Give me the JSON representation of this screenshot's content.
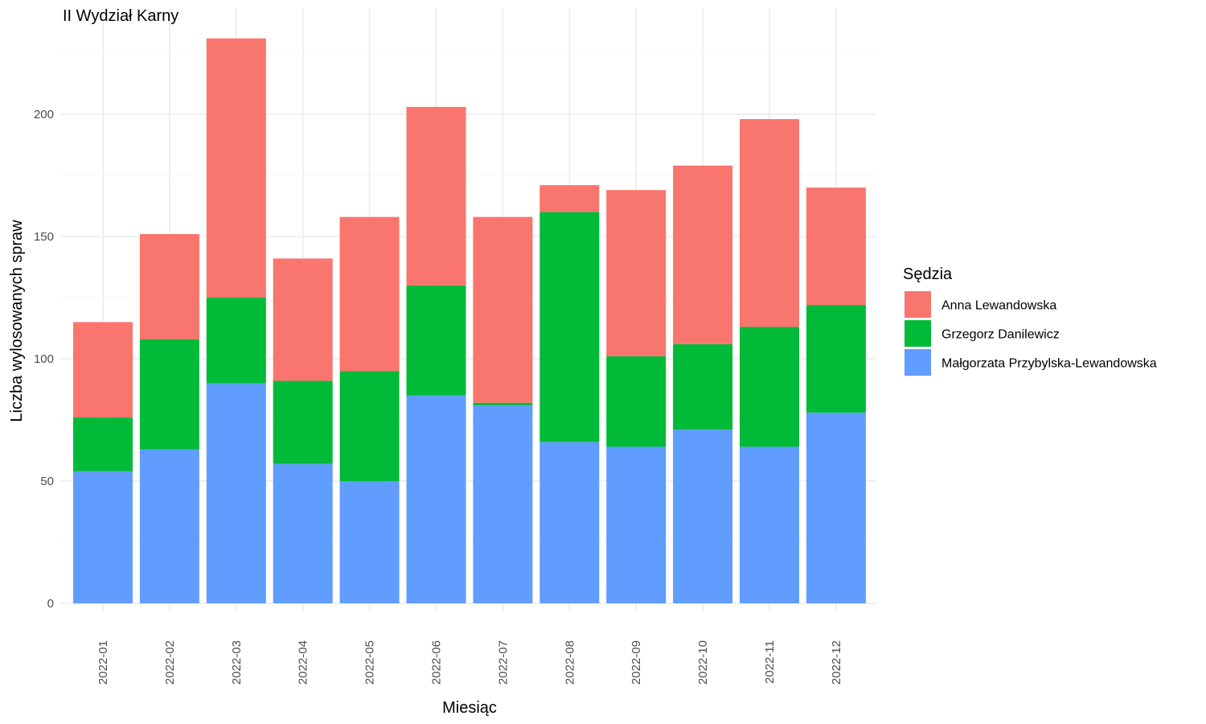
{
  "chart_data": {
    "type": "bar",
    "stacked": true,
    "title": "II Wydział Karny",
    "xlabel": "Miesiąc",
    "ylabel": "Liczba wylosowanych spraw",
    "ylim": [
      0,
      230
    ],
    "yticks": [
      0,
      50,
      100,
      150,
      200
    ],
    "grid": true,
    "legend": {
      "title": "Sędzia",
      "position": "right"
    },
    "categories": [
      "2022-01",
      "2022-02",
      "2022-03",
      "2022-04",
      "2022-05",
      "2022-06",
      "2022-07",
      "2022-08",
      "2022-09",
      "2022-10",
      "2022-11",
      "2022-12"
    ],
    "series": [
      {
        "name": "Anna Lewandowska",
        "color": "#F8766D",
        "values": [
          39,
          43,
          106,
          50,
          63,
          73,
          76,
          11,
          68,
          73,
          85,
          48
        ]
      },
      {
        "name": "Grzegorz Danilewicz",
        "color": "#00BA38",
        "values": [
          22,
          45,
          35,
          34,
          45,
          45,
          1,
          94,
          37,
          35,
          49,
          44
        ]
      },
      {
        "name": "Małgorzata Przybylska-Lewandowska",
        "color": "#619CFF",
        "values": [
          54,
          63,
          90,
          57,
          50,
          85,
          81,
          66,
          64,
          71,
          64,
          78
        ]
      }
    ]
  }
}
